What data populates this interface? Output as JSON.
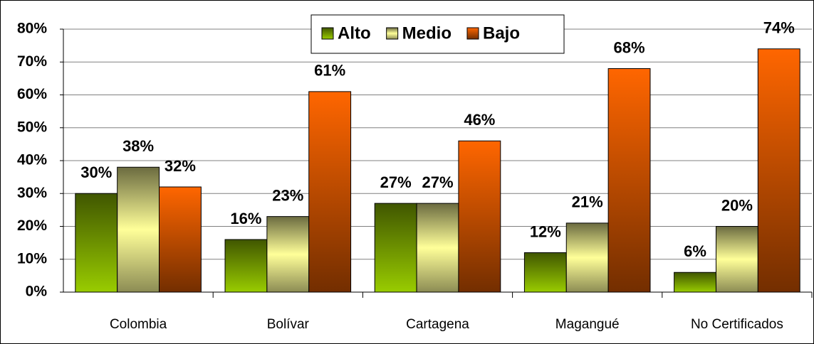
{
  "chart_data": {
    "type": "bar",
    "categories": [
      "Colombia",
      "Bolívar",
      "Cartagena",
      "Magangué",
      "No Certificados"
    ],
    "series": [
      {
        "name": "Alto",
        "color": "#99cc00",
        "values": [
          30,
          16,
          27,
          12,
          6
        ],
        "value_labels": [
          "30%",
          "16%",
          "27%",
          "12%",
          "6%"
        ]
      },
      {
        "name": "Medio",
        "color": "#ffff99",
        "values": [
          38,
          23,
          27,
          21,
          20
        ],
        "value_labels": [
          "38%",
          "23%",
          "27%",
          "21%",
          "20%"
        ]
      },
      {
        "name": "Bajo",
        "color": "#ff6600",
        "values": [
          32,
          61,
          46,
          68,
          74
        ],
        "value_labels": [
          "32%",
          "61%",
          "46%",
          "68%",
          "74%"
        ]
      }
    ],
    "ylim": [
      0,
      80
    ],
    "yticks": [
      {
        "value": 0,
        "label": "0%"
      },
      {
        "value": 10,
        "label": "10%"
      },
      {
        "value": 20,
        "label": "20%"
      },
      {
        "value": 30,
        "label": "30%"
      },
      {
        "value": 40,
        "label": "40%"
      },
      {
        "value": 50,
        "label": "50%"
      },
      {
        "value": 60,
        "label": "60%"
      },
      {
        "value": 70,
        "label": "70%"
      },
      {
        "value": 80,
        "label": "80%"
      }
    ],
    "grid": true,
    "legend": "top"
  }
}
